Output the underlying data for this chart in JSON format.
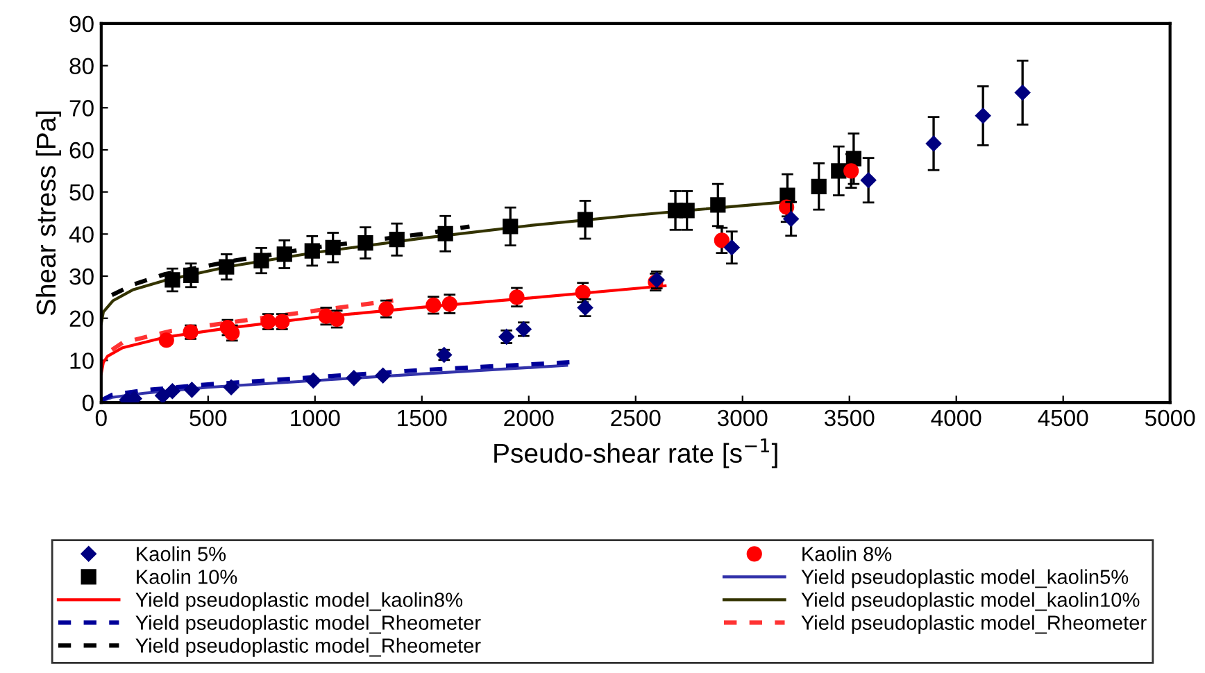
{
  "chart_data": {
    "type": "scatter",
    "xlabel": "Pseudo-shear rate [s$^{−1}$]",
    "ylabel": "Shear stress [Pa]",
    "xlim": [
      0,
      5000
    ],
    "xticks": [
      0,
      500,
      1000,
      1500,
      2000,
      2500,
      3000,
      3500,
      4000,
      4500,
      5000
    ],
    "ylim": [
      0,
      90
    ],
    "yticks": [
      0,
      10,
      20,
      30,
      40,
      50,
      60,
      70,
      80,
      90
    ],
    "grid": false,
    "legend": "bottom",
    "series": [
      {
        "name": "Kaolin 5%",
        "marker": "diamond",
        "color": "#000080",
        "x": [
          121,
          154,
          288,
          333,
          424,
          608,
          992,
          1182,
          1318,
          1604,
          1896,
          1976,
          2264,
          2599,
          2950,
          3227,
          3589,
          3894,
          4125,
          4310
        ],
        "values": [
          0.6,
          0.9,
          1.6,
          2.7,
          3.0,
          3.6,
          5.2,
          5.8,
          6.4,
          11.3,
          15.6,
          17.4,
          22.5,
          29.1,
          36.8,
          43.6,
          52.8,
          61.5,
          68.1,
          73.6
        ],
        "errors": [
          null,
          null,
          null,
          null,
          null,
          null,
          null,
          null,
          null,
          1.2,
          1.5,
          1.6,
          2.0,
          2.0,
          3.8,
          4.0,
          5.3,
          6.3,
          7.0,
          7.6
        ]
      },
      {
        "name": "Kaolin 8%",
        "marker": "circle",
        "color": "#ff0000",
        "x": [
          305,
          418,
          591,
          612,
          781,
          846,
          1052,
          1102,
          1333,
          1554,
          1630,
          1944,
          2253,
          2593,
          2903,
          3206,
          3508
        ],
        "values": [
          14.8,
          16.7,
          17.8,
          16.5,
          19.2,
          19.2,
          20.5,
          19.8,
          22.2,
          23.1,
          23.4,
          25.0,
          26.1,
          28.6,
          38.5,
          46.4,
          55.0
        ],
        "errors": [
          null,
          1.6,
          1.8,
          1.8,
          1.8,
          1.8,
          2.0,
          2.0,
          2.0,
          2.0,
          2.2,
          2.2,
          2.3,
          2.0,
          3.0,
          3.5,
          4.0
        ]
      },
      {
        "name": "Kaolin 10%",
        "marker": "square",
        "color": "#000000",
        "x": [
          333,
          420,
          586,
          749,
          857,
          987,
          1084,
          1236,
          1383,
          1610,
          1914,
          2264,
          2686,
          2740,
          2885,
          3210,
          3357,
          3450,
          3520
        ],
        "values": [
          29.1,
          30.2,
          32.2,
          33.7,
          35.2,
          36.0,
          36.8,
          37.9,
          38.7,
          40.1,
          41.8,
          43.4,
          45.6,
          45.6,
          46.9,
          49.2,
          51.3,
          55.0,
          57.9
        ],
        "errors": [
          2.7,
          2.8,
          3.0,
          3.0,
          3.3,
          3.5,
          3.5,
          3.7,
          3.8,
          4.2,
          4.5,
          4.5,
          4.6,
          4.6,
          5.0,
          5.0,
          5.5,
          5.8,
          6.0
        ]
      },
      {
        "name": "Yield pseudoplastic model_kaolin5%",
        "type": "line",
        "line_style": "solid",
        "color": "#3333aa",
        "x": [
          0,
          50,
          200,
          500,
          1000,
          1500,
          2177
        ],
        "values": [
          0.3,
          1.2,
          2.2,
          3.6,
          5.2,
          6.8,
          8.8
        ]
      },
      {
        "name": "Yield pseudoplastic model_kaolin8%",
        "type": "line",
        "line_style": "solid",
        "color": "#ff0000",
        "x": [
          0,
          10,
          30,
          100,
          300,
          600,
          1000,
          1500,
          2000,
          2638
        ],
        "values": [
          6.8,
          9.5,
          11.0,
          13.0,
          15.5,
          17.7,
          20.2,
          22.6,
          24.8,
          27.7
        ]
      },
      {
        "name": "Yield pseudoplastic model_kaolin10%",
        "type": "line",
        "line_style": "solid",
        "color": "#333300",
        "x": [
          0,
          10,
          56,
          150,
          300,
          600,
          1000,
          1500,
          2000,
          2500,
          3238
        ],
        "values": [
          18.7,
          21.5,
          24.2,
          26.8,
          29.0,
          32.3,
          35.6,
          39.0,
          42.0,
          44.5,
          47.8
        ]
      },
      {
        "name": "Yield pseudoplastic model_Rheometer",
        "type": "line",
        "line_style": "dashed",
        "color": "#000099",
        "x": [
          0,
          50,
          200,
          500,
          1000,
          1500,
          2208
        ],
        "values": [
          0.5,
          1.8,
          2.9,
          4.3,
          6.0,
          7.7,
          9.6
        ]
      },
      {
        "name": "Yield pseudoplastic model_Rheometer",
        "type": "line",
        "line_style": "dashed",
        "color": "#ff3333",
        "x": [
          50,
          100,
          327,
          600,
          1000,
          1366
        ],
        "values": [
          12.5,
          14.2,
          17.0,
          19.0,
          21.8,
          24.2
        ]
      },
      {
        "name": "Yield pseudoplastic model_Rheometer",
        "type": "line",
        "line_style": "dashed",
        "color": "#000000",
        "x": [
          50,
          150,
          300,
          600,
          1000,
          1500,
          1723
        ],
        "values": [
          25.5,
          28.0,
          30.5,
          33.5,
          36.8,
          40.0,
          41.8
        ]
      }
    ]
  }
}
